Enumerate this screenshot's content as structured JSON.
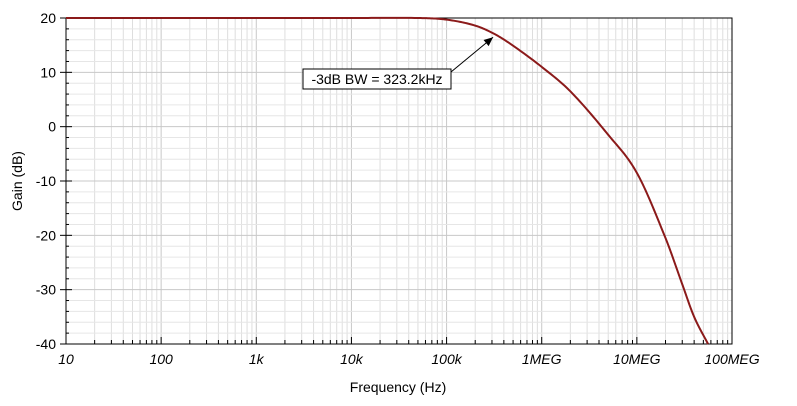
{
  "chart_data": {
    "type": "line",
    "title": "",
    "xlabel": "Frequency (Hz)",
    "ylabel": "Gain (dB)",
    "x_scale": "log",
    "xlim": [
      10,
      100000000
    ],
    "ylim": [
      -40,
      20
    ],
    "grid": true,
    "x_ticks": [
      {
        "value": 10,
        "label": "10"
      },
      {
        "value": 100,
        "label": "100"
      },
      {
        "value": 1000,
        "label": "1k"
      },
      {
        "value": 10000,
        "label": "10k"
      },
      {
        "value": 100000,
        "label": "100k"
      },
      {
        "value": 1000000,
        "label": "1MEG"
      },
      {
        "value": 10000000,
        "label": "10MEG"
      },
      {
        "value": 100000000,
        "label": "100MEG"
      }
    ],
    "y_ticks": [
      {
        "value": 20,
        "label": "20"
      },
      {
        "value": 10,
        "label": "10"
      },
      {
        "value": 0,
        "label": "0"
      },
      {
        "value": -10,
        "label": "-10"
      },
      {
        "value": -20,
        "label": "-20"
      },
      {
        "value": -30,
        "label": "-30"
      },
      {
        "value": -40,
        "label": "-40"
      }
    ],
    "series": [
      {
        "color": "#8b1a1a",
        "x": [
          10,
          100,
          1000,
          10000,
          50000,
          100000,
          200000,
          323200,
          500000,
          1000000,
          2000000,
          5000000,
          10000000,
          20000000,
          30000000,
          40000000,
          56000000
        ],
        "y": [
          20,
          20,
          20,
          20,
          20,
          19.7,
          18.6,
          17,
          14.9,
          11,
          6.5,
          -1.5,
          -8.5,
          -20.5,
          -29,
          -35,
          -40
        ]
      }
    ],
    "annotations": [
      {
        "text": "-3dB BW = 323.2kHz",
        "x": 323200,
        "y": 17
      }
    ]
  }
}
